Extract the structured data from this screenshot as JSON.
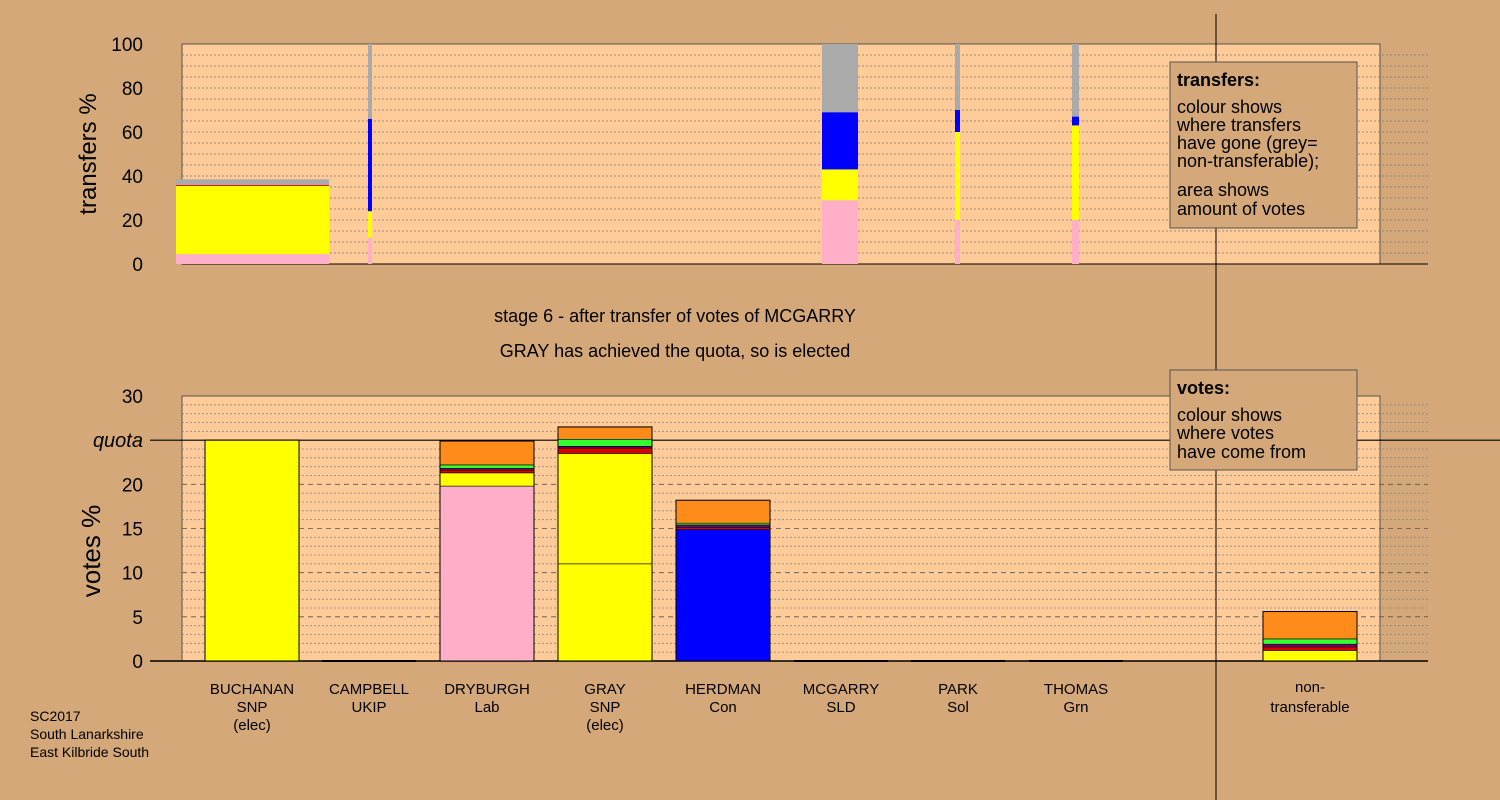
{
  "colors": {
    "background": "#d4a878",
    "plot_area": "#ffcc99",
    "SNP": "#ffff00",
    "Lab": "#ffb0c8",
    "Con": "#0000ff",
    "Grn": "#33ff33",
    "SLD": "#ff8c1a",
    "UKIP": "#7b007b",
    "Sol": "#dd0000",
    "non_transferable": "#aaaaaa"
  },
  "stage_title": "stage 6 - after transfer of votes of MCGARRY",
  "stage_subtitle": "GRAY has achieved the quota, so is elected",
  "meta": [
    "SC2017",
    "South Lanarkshire",
    "East Kilbride South"
  ],
  "legend_transfers": {
    "title": "transfers:",
    "lines1": [
      "colour shows",
      "where transfers",
      "have gone (grey=",
      "non-transferable);"
    ],
    "lines2": [
      "area shows",
      "amount of votes"
    ]
  },
  "legend_votes": {
    "title": "votes:",
    "lines": [
      "colour shows",
      "where votes",
      "have come from"
    ]
  },
  "chart_data": [
    {
      "type": "bar",
      "title": "",
      "ylabel": "transfers %",
      "ylim": [
        0,
        100
      ],
      "yticks": [
        0,
        20,
        40,
        60,
        80,
        100
      ],
      "columns": [
        {
          "candidate": "BUCHANAN",
          "share": 38.5,
          "width_fraction": 1.0,
          "segments": [
            {
              "party": "Lab",
              "value": 4.5
            },
            {
              "party": "SNP",
              "value": 31
            },
            {
              "party": "Sol",
              "value": 0.4
            },
            {
              "party": "non_transferable",
              "value": 2.6
            }
          ]
        },
        {
          "candidate": "CAMPBELL",
          "share": 100,
          "width_fraction": 0.03,
          "segments": [
            {
              "party": "Lab",
              "value": 12
            },
            {
              "party": "SNP",
              "value": 12
            },
            {
              "party": "Con",
              "value": 42
            },
            {
              "party": "non_transferable",
              "value": 34
            }
          ]
        },
        {
          "candidate": "MCGARRY",
          "share": 100,
          "width_fraction": 0.24,
          "segments": [
            {
              "party": "Lab",
              "value": 29
            },
            {
              "party": "SNP",
              "value": 14
            },
            {
              "party": "Con",
              "value": 26
            },
            {
              "party": "non_transferable",
              "value": 31
            }
          ]
        },
        {
          "candidate": "PARK",
          "share": 100,
          "width_fraction": 0.03,
          "segments": [
            {
              "party": "Lab",
              "value": 20
            },
            {
              "party": "SNP",
              "value": 40
            },
            {
              "party": "Con",
              "value": 10
            },
            {
              "party": "non_transferable",
              "value": 30
            }
          ]
        },
        {
          "candidate": "THOMAS",
          "share": 100,
          "width_fraction": 0.04,
          "segments": [
            {
              "party": "Lab",
              "value": 20
            },
            {
              "party": "SNP",
              "value": 43
            },
            {
              "party": "Con",
              "value": 4
            },
            {
              "party": "non_transferable",
              "value": 33
            }
          ]
        }
      ]
    },
    {
      "type": "bar",
      "title": "",
      "ylabel": "votes %",
      "ylim": [
        0,
        30
      ],
      "yticks": [
        0,
        5,
        10,
        15,
        20,
        25,
        30
      ],
      "quota": 25,
      "quota_label": "quota",
      "candidates": [
        {
          "name": "BUCHANAN",
          "party": "SNP",
          "status": "(elec)",
          "segments": [
            {
              "party": "SNP",
              "value": 25
            }
          ]
        },
        {
          "name": "CAMPBELL",
          "party": "UKIP",
          "status": "",
          "segments": []
        },
        {
          "name": "DRYBURGH",
          "party": "Lab",
          "status": "",
          "segments": [
            {
              "party": "Lab",
              "value": 19.8
            },
            {
              "party": "SNP",
              "value": 1.5
            },
            {
              "party": "Sol",
              "value": 0.3
            },
            {
              "party": "UKIP",
              "value": 0.2
            },
            {
              "party": "Grn",
              "value": 0.4
            },
            {
              "party": "SLD",
              "value": 2.7
            }
          ]
        },
        {
          "name": "GRAY",
          "party": "SNP",
          "status": "(elec)",
          "segments": [
            {
              "party": "SNP",
              "value": 11
            },
            {
              "party": "SNP",
              "value": 12.5
            },
            {
              "party": "Sol",
              "value": 0.6
            },
            {
              "party": "UKIP",
              "value": 0.2
            },
            {
              "party": "Grn",
              "value": 0.8
            },
            {
              "party": "SLD",
              "value": 1.4
            }
          ]
        },
        {
          "name": "HERDMAN",
          "party": "Con",
          "status": "",
          "segments": [
            {
              "party": "Con",
              "value": 14.9
            },
            {
              "party": "Sol",
              "value": 0.2
            },
            {
              "party": "UKIP",
              "value": 0.3
            },
            {
              "party": "Grn",
              "value": 0.2
            },
            {
              "party": "SLD",
              "value": 2.6
            }
          ]
        },
        {
          "name": "MCGARRY",
          "party": "SLD",
          "status": "",
          "segments": []
        },
        {
          "name": "PARK",
          "party": "Sol",
          "status": "",
          "segments": []
        },
        {
          "name": "THOMAS",
          "party": "Grn",
          "status": "",
          "segments": []
        },
        {
          "name": "non-",
          "party": "transferable",
          "status": "",
          "segments": [
            {
              "party": "SNP",
              "value": 1.2
            },
            {
              "party": "Sol",
              "value": 0.4
            },
            {
              "party": "UKIP",
              "value": 0.3
            },
            {
              "party": "Grn",
              "value": 0.6
            },
            {
              "party": "SLD",
              "value": 3.1
            }
          ]
        }
      ]
    }
  ]
}
